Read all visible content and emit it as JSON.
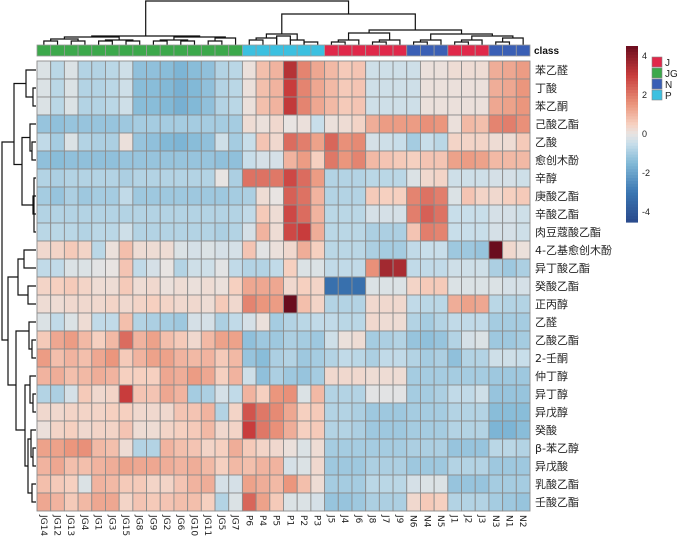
{
  "chart_data": {
    "type": "heatmap",
    "title": "",
    "annotation_title": "class",
    "columns": [
      "JG14",
      "JG12",
      "JG13",
      "JG4",
      "JG1",
      "JG3",
      "JG15",
      "JG8",
      "JG9",
      "JG2",
      "JG6",
      "JG10",
      "JG11",
      "JG5",
      "JG7",
      "P6",
      "P4",
      "P5",
      "P1",
      "P2",
      "P3",
      "J5",
      "J4",
      "J6",
      "J8",
      "J7",
      "J9",
      "N6",
      "N4",
      "N5",
      "J1",
      "J2",
      "J3",
      "N3",
      "N1",
      "N2"
    ],
    "column_classes": [
      "JG",
      "JG",
      "JG",
      "JG",
      "JG",
      "JG",
      "JG",
      "JG",
      "JG",
      "JG",
      "JG",
      "JG",
      "JG",
      "JG",
      "JG",
      "P",
      "P",
      "P",
      "P",
      "P",
      "P",
      "J",
      "J",
      "J",
      "J",
      "J",
      "J",
      "N",
      "N",
      "N",
      "J",
      "J",
      "J",
      "N",
      "N",
      "N"
    ],
    "rows": [
      "苯乙醛",
      "丁酸",
      "苯乙酮",
      "己酸乙酯",
      "乙酸",
      "愈创木酚",
      "辛醇",
      "庚酸乙酯",
      "辛酸乙酯",
      "肉豆蔻酸乙酯",
      "4-乙基愈创木酚",
      "异丁酸乙酯",
      "癸酸乙酯",
      "正丙醇",
      "乙醛",
      "乙酸乙酯",
      "2-壬酮",
      "仲丁醇",
      "异丁醇",
      "异戊醇",
      "癸酸",
      "β-苯乙醇",
      "异戊酸",
      "乳酸乙酯",
      "壬酸乙酯"
    ],
    "values": [
      [
        -0.2,
        -0.7,
        -0.2,
        -0.8,
        -0.8,
        -0.7,
        -0.4,
        -1.3,
        -1.3,
        -1.4,
        -1.6,
        -1.4,
        -1.3,
        -0.8,
        -0.7,
        0.1,
        0.8,
        1.0,
        3.3,
        1.8,
        1.2,
        0.9,
        0.6,
        0.7,
        -0.4,
        -0.4,
        -0.4,
        -0.4,
        0.1,
        0.1,
        0.2,
        0.2,
        0.2,
        1.1,
        1.2,
        1.4
      ],
      [
        -0.2,
        -0.7,
        -0.2,
        -0.8,
        -0.8,
        -0.7,
        -0.4,
        -1.4,
        -1.4,
        -1.5,
        -1.7,
        -1.5,
        -1.3,
        -0.8,
        -0.7,
        0.1,
        0.8,
        1.0,
        3.0,
        1.8,
        1.2,
        0.9,
        0.6,
        0.7,
        -0.4,
        -0.4,
        -0.4,
        -0.4,
        0.1,
        0.1,
        0.1,
        0.1,
        0.1,
        1.1,
        1.2,
        1.5
      ],
      [
        -0.2,
        -0.7,
        -0.2,
        -0.8,
        -0.8,
        -0.7,
        -0.4,
        -1.4,
        -1.4,
        -1.5,
        -1.7,
        -1.5,
        -1.3,
        -0.8,
        -0.7,
        0.1,
        0.8,
        1.0,
        3.1,
        1.8,
        1.2,
        0.9,
        0.6,
        0.7,
        -0.4,
        -0.4,
        -0.4,
        -0.4,
        0.1,
        0.1,
        0.1,
        0.1,
        0.1,
        1.2,
        1.3,
        1.5
      ],
      [
        -1.2,
        -1.3,
        -1.2,
        -1.2,
        -1.2,
        -1.2,
        -1.1,
        -1.0,
        -1.0,
        -1.0,
        -1.0,
        -1.0,
        -1.0,
        -1.0,
        -1.0,
        0.2,
        0.1,
        0.3,
        0.0,
        0.1,
        -0.5,
        0.1,
        0.2,
        0.4,
        1.1,
        1.4,
        1.4,
        1.4,
        1.6,
        1.5,
        0.1,
        0.9,
        0.8,
        1.8,
        1.9,
        1.6
      ],
      [
        -0.6,
        -1.0,
        -0.2,
        -0.8,
        -0.9,
        -0.9,
        0.1,
        -1.2,
        -1.3,
        -1.5,
        -1.6,
        -1.4,
        -1.3,
        -0.4,
        -1.0,
        -0.5,
        0.7,
        0.3,
        2.2,
        1.9,
        1.3,
        2.3,
        1.6,
        1.7,
        -0.3,
        -0.4,
        -0.5,
        -1.0,
        -0.5,
        -0.7,
        0.4,
        0.4,
        0.4,
        0.2,
        0.2,
        0.6
      ],
      [
        -1.3,
        -1.4,
        -1.3,
        -1.3,
        -1.3,
        -1.3,
        -1.2,
        -1.2,
        -1.2,
        -1.2,
        -1.2,
        -1.2,
        -1.2,
        -1.3,
        -1.3,
        -0.5,
        -0.3,
        -0.3,
        1.0,
        1.4,
        0.5,
        2.0,
        1.5,
        1.8,
        0.9,
        0.7,
        0.6,
        0.5,
        0.7,
        0.7,
        1.3,
        1.4,
        1.3,
        0.9,
        0.9,
        0.9
      ],
      [
        -0.8,
        -0.9,
        -0.8,
        -0.8,
        -0.8,
        -0.8,
        -0.9,
        -0.8,
        -0.8,
        -0.8,
        -0.8,
        -0.8,
        -0.8,
        0.0,
        -0.9,
        2.1,
        2.1,
        2.0,
        2.8,
        2.2,
        1.4,
        -0.8,
        -0.8,
        -0.8,
        -0.7,
        -0.7,
        -0.7,
        -0.2,
        0.3,
        0.4,
        -0.4,
        -0.4,
        -0.4,
        -0.3,
        -0.3,
        -0.4
      ],
      [
        -1.0,
        -1.2,
        -0.9,
        -1.1,
        -1.0,
        -1.0,
        -0.6,
        -1.1,
        -1.1,
        -1.1,
        -1.1,
        -1.1,
        -1.1,
        -1.1,
        -1.0,
        -0.9,
        0.2,
        0.0,
        2.4,
        2.1,
        1.0,
        -0.8,
        -0.8,
        -0.8,
        0.6,
        0.5,
        0.5,
        1.8,
        2.1,
        1.9,
        -0.2,
        0.7,
        0.4,
        0.3,
        0.5,
        0.6
      ],
      [
        -0.8,
        -0.8,
        -0.8,
        -0.8,
        -0.8,
        -0.8,
        -0.8,
        -0.8,
        -0.8,
        -0.8,
        -0.8,
        -0.8,
        -0.8,
        -0.8,
        -0.8,
        -0.6,
        0.6,
        0.2,
        2.8,
        2.2,
        1.0,
        -0.7,
        -0.7,
        -0.7,
        -0.3,
        -0.3,
        -0.3,
        1.9,
        2.4,
        2.1,
        -0.5,
        -0.5,
        -0.5,
        -0.3,
        -0.3,
        -0.4
      ],
      [
        -0.7,
        -0.7,
        -0.7,
        -0.8,
        -0.7,
        -0.7,
        -0.4,
        -0.8,
        -0.8,
        -0.8,
        -0.8,
        -0.8,
        -0.8,
        -0.9,
        -0.8,
        -0.3,
        1.0,
        0.2,
        2.8,
        3.0,
        1.1,
        -0.7,
        -0.7,
        -0.7,
        -0.9,
        -0.9,
        -0.9,
        0.7,
        1.9,
        1.8,
        -0.5,
        -0.5,
        -0.5,
        -0.3,
        -0.3,
        -0.4
      ],
      [
        0.3,
        0.4,
        0.6,
        0.4,
        -0.7,
        0.1,
        0.8,
        0.2,
        0.2,
        0.2,
        -0.2,
        -0.3,
        -0.2,
        -0.3,
        -0.3,
        0.7,
        -0.1,
        0.1,
        0.3,
        1.1,
        0.5,
        -0.7,
        -0.7,
        -0.7,
        -0.9,
        -1.0,
        -1.0,
        -0.6,
        -0.5,
        -0.5,
        -1.1,
        -1.1,
        -1.2,
        4.8,
        0.3,
        0.1
      ],
      [
        -0.6,
        -0.6,
        -0.2,
        -0.2,
        -0.1,
        0.0,
        0.7,
        -0.6,
        -0.3,
        0.0,
        -0.8,
        -0.4,
        -0.4,
        -0.1,
        -0.6,
        -0.8,
        -0.8,
        -0.6,
        0.5,
        -0.2,
        -0.2,
        -0.6,
        -0.6,
        -0.6,
        1.6,
        3.6,
        3.5,
        -0.6,
        -0.6,
        -0.6,
        -0.4,
        -0.4,
        -0.4,
        -0.9,
        -1.1,
        -0.9
      ],
      [
        0.4,
        0.5,
        0.6,
        0.4,
        0.2,
        0.2,
        0.6,
        0.2,
        0.3,
        0.1,
        0.2,
        0.1,
        0.2,
        0.1,
        0.5,
        1.2,
        1.2,
        1.2,
        0.3,
        0.5,
        0.4,
        -3.2,
        -3.2,
        -3.2,
        -0.2,
        -0.2,
        -0.2,
        0.4,
        0.6,
        0.6,
        -0.2,
        -0.2,
        -0.2,
        -0.2,
        -0.3,
        -0.3
      ],
      [
        0.2,
        0.2,
        0.3,
        0.3,
        0.3,
        0.4,
        0.3,
        0.4,
        0.5,
        0.4,
        0.3,
        0.3,
        0.2,
        0.6,
        0.3,
        1.8,
        1.5,
        1.4,
        4.8,
        0.8,
        0.4,
        -0.8,
        -0.8,
        -0.8,
        0.3,
        0.3,
        0.3,
        -0.6,
        -0.7,
        -0.7,
        1.1,
        1.3,
        1.2,
        -0.7,
        -0.8,
        -0.8
      ],
      [
        -0.2,
        -0.6,
        -0.2,
        0.2,
        -0.6,
        -0.6,
        0.8,
        -0.8,
        -0.9,
        -1.0,
        -1.1,
        -0.3,
        -0.3,
        -0.9,
        -0.6,
        -0.3,
        0.1,
        -1.0,
        -0.8,
        -0.7,
        -0.6,
        -0.6,
        -0.7,
        -0.7,
        0.3,
        0.2,
        0.2,
        -0.8,
        -1.0,
        -0.8,
        -0.6,
        -0.6,
        -0.6,
        -1.0,
        -1.0,
        -1.0
      ],
      [
        0.6,
        1.2,
        1.4,
        0.9,
        0.5,
        0.9,
        2.2,
        1.0,
        1.3,
        0.8,
        0.6,
        0.3,
        0.9,
        1.3,
        1.3,
        -1.3,
        -1.1,
        -1.1,
        -0.9,
        -1.0,
        -1.1,
        -0.4,
        0.1,
        0.2,
        -1.0,
        -0.9,
        -0.8,
        -1.2,
        -1.3,
        -1.2,
        -0.8,
        -0.3,
        -0.2,
        -1.1,
        -1.1,
        -1.0
      ],
      [
        1.4,
        0.8,
        1.0,
        0.8,
        1.2,
        1.5,
        0.6,
        1.0,
        1.3,
        1.3,
        1.0,
        0.9,
        1.0,
        0.6,
        0.9,
        -1.2,
        -1.4,
        -0.9,
        -0.8,
        -1.1,
        -1.0,
        -0.8,
        -0.6,
        -0.7,
        -0.9,
        -0.6,
        -0.6,
        -0.8,
        -1.0,
        -0.9,
        -1.3,
        -0.8,
        -0.8,
        -0.4,
        -0.4,
        -0.5
      ],
      [
        1.0,
        1.1,
        0.8,
        0.9,
        1.1,
        1.0,
        0.5,
        0.5,
        0.5,
        1.2,
        1.1,
        1.4,
        1.2,
        0.5,
        1.0,
        -0.4,
        -1.3,
        -0.9,
        -1.1,
        -1.2,
        -1.0,
        0.3,
        0.3,
        0.3,
        0.2,
        0.2,
        0.2,
        -1.0,
        -1.0,
        -1.0,
        -1.0,
        -1.0,
        -1.0,
        -1.1,
        -1.1,
        -1.1
      ],
      [
        -0.8,
        -0.9,
        -0.3,
        0.6,
        0.3,
        0.4,
        3.0,
        0.7,
        0.7,
        1.2,
        1.0,
        -1.0,
        -0.9,
        -0.3,
        -0.6,
        1.0,
        0.5,
        1.5,
        1.6,
        -0.2,
        0.9,
        -0.8,
        -0.8,
        -0.8,
        -0.1,
        -0.1,
        -0.1,
        -1.0,
        -1.0,
        -0.9,
        -0.6,
        -0.6,
        -0.4,
        -1.2,
        -1.2,
        -1.2
      ],
      [
        0.3,
        0.3,
        0.4,
        0.4,
        0.4,
        0.5,
        0.5,
        0.3,
        0.3,
        0.3,
        0.7,
        0.7,
        1.0,
        -0.8,
        0.4,
        2.6,
        2.0,
        1.7,
        1.2,
        0.5,
        0.6,
        -0.8,
        -0.8,
        -0.9,
        -1.1,
        -1.1,
        -1.1,
        -1.0,
        -1.0,
        -1.0,
        -0.8,
        -0.8,
        -0.8,
        -1.4,
        -1.4,
        -1.4
      ],
      [
        0.1,
        0.4,
        0.5,
        0.3,
        0.4,
        0.4,
        0.7,
        0.2,
        0.2,
        0.4,
        0.5,
        0.6,
        0.9,
        0.3,
        0.4,
        3.0,
        2.0,
        1.6,
        1.1,
        0.5,
        0.6,
        -0.8,
        -0.8,
        -0.9,
        -1.1,
        -1.1,
        -1.1,
        -1.0,
        -1.0,
        -1.0,
        -0.8,
        -0.8,
        -0.8,
        -1.6,
        -1.6,
        -1.4
      ],
      [
        1.3,
        1.3,
        1.5,
        1.6,
        0.9,
        0.8,
        0.2,
        -0.8,
        -0.8,
        1.0,
        0.8,
        0.7,
        0.4,
        0.5,
        1.1,
        0.6,
        0.4,
        0.3,
        0.1,
        -0.2,
        0.2,
        -1.0,
        -1.0,
        -1.0,
        -1.0,
        -1.0,
        -1.0,
        -0.9,
        -0.9,
        -0.9,
        -1.2,
        -1.2,
        -1.2,
        -0.7,
        -0.7,
        -0.8
      ],
      [
        1.0,
        1.2,
        0.8,
        0.8,
        1.0,
        1.1,
        1.3,
        1.2,
        1.2,
        1.1,
        1.0,
        1.1,
        0.9,
        0.5,
        0.9,
        0.8,
        1.0,
        1.0,
        -0.3,
        -0.2,
        0.3,
        -1.1,
        -1.1,
        -1.1,
        -0.9,
        -0.9,
        -0.9,
        -1.1,
        -1.1,
        -1.1,
        -0.8,
        -0.8,
        -0.8,
        -1.1,
        -1.1,
        -1.1
      ],
      [
        0.8,
        0.6,
        0.5,
        -0.2,
        1.0,
        0.9,
        0.6,
        0.6,
        0.4,
        0.4,
        0.7,
        1.0,
        1.1,
        -0.3,
        -0.3,
        1.3,
        1.1,
        0.9,
        1.5,
        0.8,
        0.2,
        -1.0,
        -1.0,
        -1.0,
        -0.7,
        -0.7,
        -0.7,
        -0.3,
        -0.2,
        -0.2,
        -1.2,
        -1.2,
        -1.2,
        -1.0,
        -1.0,
        -1.0
      ],
      [
        1.2,
        1.0,
        0.6,
        0.9,
        1.2,
        1.2,
        0.4,
        0.7,
        0.6,
        0.7,
        0.8,
        0.8,
        0.5,
        -0.8,
        -0.2,
        2.3,
        1.3,
        0.6,
        -0.2,
        -0.2,
        -0.3,
        -1.2,
        -1.2,
        -1.1,
        -0.9,
        -0.9,
        -0.9,
        0.3,
        0.6,
        0.5,
        -0.8,
        -0.8,
        -0.8,
        -1.0,
        -1.1,
        -1.2
      ]
    ],
    "color_scale": {
      "min": -4.5,
      "max": 4.5,
      "ticks": [
        4,
        2,
        0,
        -2,
        -4
      ],
      "low": "#2a4a8c",
      "mid": "#eeeeee",
      "high": "#6a0d1e"
    },
    "legend": {
      "title": "class",
      "entries": [
        {
          "name": "J",
          "color": "#e0284a"
        },
        {
          "name": "JG",
          "color": "#3ca84b"
        },
        {
          "name": "N",
          "color": "#3a5fb5"
        },
        {
          "name": "P",
          "color": "#3cc0e0"
        }
      ],
      "placement": "top-right"
    },
    "col_dendrogram": true,
    "row_dendrogram": true
  }
}
